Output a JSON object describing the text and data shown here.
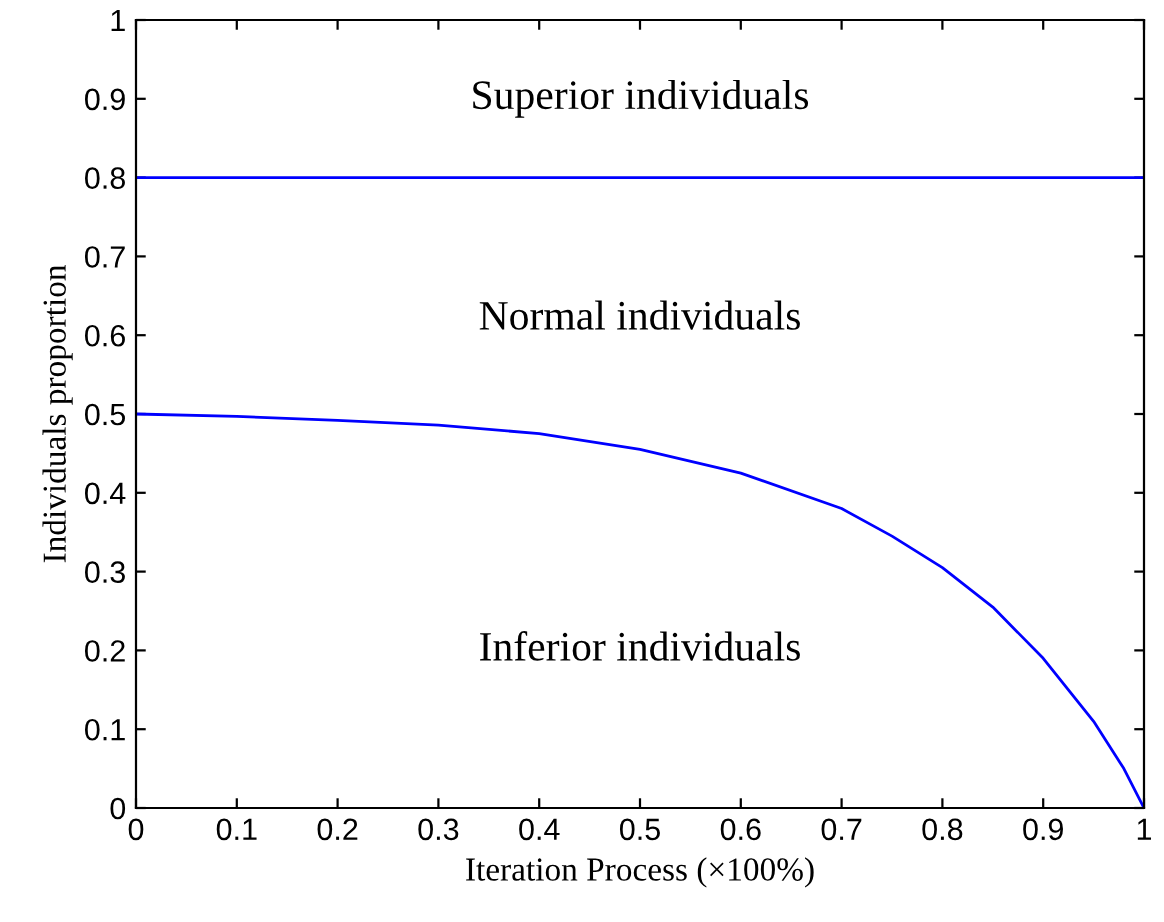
{
  "chart_data": {
    "type": "line",
    "xlabel": "Iteration Process (×100%)",
    "ylabel": "Individuals proportion",
    "x": [
      0,
      0.1,
      0.2,
      0.3,
      0.4,
      0.5,
      0.6,
      0.7,
      0.75,
      0.8,
      0.85,
      0.9,
      0.95,
      0.98,
      1.0
    ],
    "series": [
      {
        "color": "#0000ff",
        "values": [
          0.5,
          0.497,
          0.492,
          0.486,
          0.475,
          0.455,
          0.425,
          0.38,
          0.345,
          0.305,
          0.255,
          0.19,
          0.11,
          0.05,
          0
        ]
      }
    ],
    "ref_lines": [
      {
        "axis": "y",
        "value": 0.8,
        "color": "#0000ff"
      }
    ],
    "annotations": [
      "Superior individuals",
      "Normal individuals",
      "Inferior individuals"
    ],
    "xlim": [
      0,
      1
    ],
    "ylim": [
      0,
      1
    ],
    "xticks": [
      0,
      0.1,
      0.2,
      0.3,
      0.4,
      0.5,
      0.6,
      0.7,
      0.8,
      0.9,
      1
    ],
    "yticks": [
      0,
      0.1,
      0.2,
      0.3,
      0.4,
      0.5,
      0.6,
      0.7,
      0.8,
      0.9,
      1
    ],
    "grid": false,
    "legend": false
  }
}
